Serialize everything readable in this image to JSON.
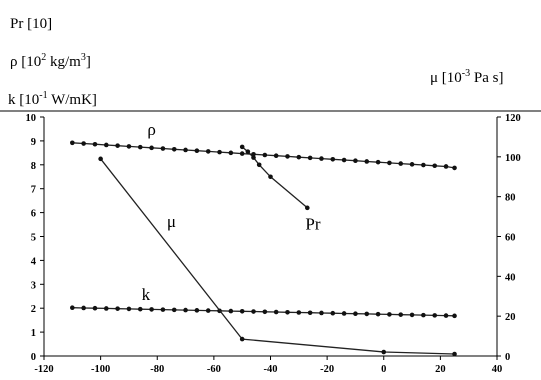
{
  "chart_data": {
    "type": "line",
    "left_axis_labels": [
      {
        "base": "Pr [10]",
        "sup": "",
        "tail": ""
      },
      {
        "base": "ρ [10",
        "sup": "2",
        "tail": " kg/m",
        "sup2": "3",
        "tail2": "]"
      },
      {
        "base": "k [10",
        "sup": "-1",
        "tail": " W/mK]",
        "sup2": "",
        "tail2": ""
      }
    ],
    "right_axis_label": {
      "base": "μ [10",
      "sup": "-3",
      "tail": " Pa s]"
    },
    "xlim": [
      -120,
      40
    ],
    "ylim_left": [
      0,
      10
    ],
    "ylim_right": [
      0,
      120
    ],
    "x_ticks": [
      -120,
      -100,
      -80,
      -60,
      -40,
      -20,
      0,
      20,
      40
    ],
    "y_ticks_left": [
      0,
      1,
      2,
      3,
      4,
      5,
      6,
      7,
      8,
      9,
      10
    ],
    "y_ticks_right": [
      0,
      20,
      40,
      60,
      80,
      100,
      120
    ],
    "series": [
      {
        "name": "ρ",
        "axis": "left",
        "label_at": {
          "x": -82,
          "y": 9.25
        },
        "x": [
          -110,
          -106,
          -102,
          -98,
          -94,
          -90,
          -86,
          -82,
          -78,
          -74,
          -70,
          -66,
          -62,
          -58,
          -54,
          -50,
          -46,
          -42,
          -38,
          -34,
          -30,
          -26,
          -22,
          -18,
          -14,
          -10,
          -6,
          -2,
          2,
          6,
          10,
          14,
          18,
          22,
          25
        ],
        "y": [
          8.92,
          8.89,
          8.86,
          8.83,
          8.8,
          8.77,
          8.74,
          8.71,
          8.68,
          8.65,
          8.62,
          8.59,
          8.56,
          8.53,
          8.5,
          8.47,
          8.44,
          8.41,
          8.38,
          8.35,
          8.32,
          8.29,
          8.26,
          8.23,
          8.2,
          8.17,
          8.14,
          8.11,
          8.08,
          8.05,
          8.02,
          7.99,
          7.96,
          7.93,
          7.87
        ]
      },
      {
        "name": "k",
        "axis": "left",
        "label_at": {
          "x": -84,
          "y": 2.35
        },
        "x": [
          -110,
          -106,
          -102,
          -98,
          -94,
          -90,
          -86,
          -82,
          -78,
          -74,
          -70,
          -66,
          -62,
          -58,
          -54,
          -50,
          -46,
          -42,
          -38,
          -34,
          -30,
          -26,
          -22,
          -18,
          -14,
          -10,
          -6,
          -2,
          2,
          6,
          10,
          14,
          18,
          22,
          25
        ],
        "y": [
          2.02,
          2.01,
          2.0,
          1.99,
          1.98,
          1.97,
          1.96,
          1.95,
          1.94,
          1.93,
          1.92,
          1.91,
          1.9,
          1.89,
          1.88,
          1.87,
          1.86,
          1.85,
          1.84,
          1.83,
          1.82,
          1.81,
          1.8,
          1.79,
          1.78,
          1.77,
          1.76,
          1.75,
          1.74,
          1.73,
          1.72,
          1.71,
          1.7,
          1.69,
          1.68
        ]
      },
      {
        "name": "μ",
        "axis": "right",
        "label_at": {
          "x": -75,
          "y": 5.4
        },
        "x": [
          -100,
          -50,
          0,
          25
        ],
        "y": [
          99,
          8.5,
          2,
          1
        ]
      },
      {
        "name": "Pr",
        "axis": "left",
        "label_at": {
          "x": -25,
          "y": 5.3
        },
        "x": [
          -50,
          -48,
          -46,
          -44,
          -40,
          -27
        ],
        "y": [
          8.75,
          8.55,
          8.3,
          8.0,
          7.5,
          6.2
        ]
      }
    ]
  }
}
